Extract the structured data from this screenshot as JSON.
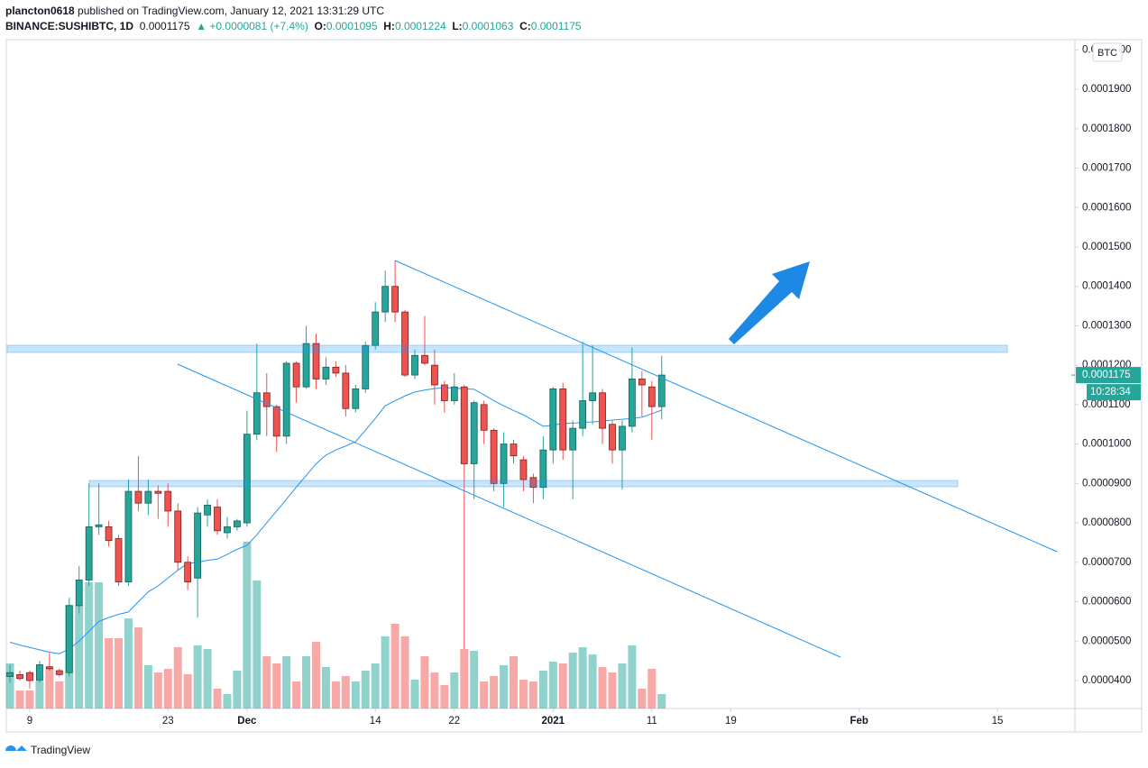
{
  "header": {
    "author": "plancton0618",
    "published": "published on TradingView.com, January 12, 2021 13:31:29 UTC",
    "symbol": "BINANCE:SUSHIBTC, 1D",
    "last": "0.0001175",
    "change": "▲ +0.0000081 (+7.4%)",
    "o_label": "O:",
    "o": "0.0001095",
    "h_label": "H:",
    "h": "0.0001224",
    "l_label": "L:",
    "l": "0.0001063",
    "c_label": "C:",
    "c": "0.0001175"
  },
  "footer": {
    "brand": "TradingView"
  },
  "chart_data": {
    "type": "candlestick",
    "currency": "BTC",
    "countdown": "10:28:34",
    "up_color": "#26a69a",
    "down_color": "#ef5350",
    "ma_color": "#2196f3",
    "grid": false,
    "xlim": [
      -2.28,
      105.85
    ],
    "xticks": [
      {
        "value": 0,
        "label": "9"
      },
      {
        "value": 14,
        "label": "23"
      },
      {
        "value": 22,
        "label": "Dec"
      },
      {
        "value": 35,
        "label": "14"
      },
      {
        "value": 43,
        "label": "22"
      },
      {
        "value": 53,
        "label": "2021"
      },
      {
        "value": 63,
        "label": "11"
      },
      {
        "value": 71,
        "label": "19"
      },
      {
        "value": 84,
        "label": "Feb"
      },
      {
        "value": 98,
        "label": "15"
      }
    ],
    "ylim": [
      3.29e-05,
      0.0002026
    ],
    "yticks": [
      {
        "value": 4e-05,
        "label": "0.0000400"
      },
      {
        "value": 5e-05,
        "label": "0.0000500"
      },
      {
        "value": 6e-05,
        "label": "0.0000600"
      },
      {
        "value": 7e-05,
        "label": "0.0000700"
      },
      {
        "value": 8e-05,
        "label": "0.0000800"
      },
      {
        "value": 9e-05,
        "label": "0.0000900"
      },
      {
        "value": 0.0001,
        "label": "0.0001000"
      },
      {
        "value": 0.00011,
        "label": "0.0001100"
      },
      {
        "value": 0.00012,
        "label": "0.0001200"
      },
      {
        "value": 0.00013,
        "label": "0.0001300"
      },
      {
        "value": 0.00014,
        "label": "0.0001400"
      },
      {
        "value": 0.00015,
        "label": "0.0001500"
      },
      {
        "value": 0.00016,
        "label": "0.0001600"
      },
      {
        "value": 0.00017,
        "label": "0.0001700"
      },
      {
        "value": 0.00018,
        "label": "0.0001800"
      },
      {
        "value": 0.00019,
        "label": "0.0001900"
      },
      {
        "value": 0.0002,
        "label": "0.0002000"
      }
    ],
    "x": [
      -2,
      -1,
      0,
      1,
      2,
      3,
      4,
      5,
      6,
      7,
      8,
      9,
      10,
      11,
      12,
      13,
      14,
      15,
      16,
      17,
      18,
      19,
      20,
      21,
      22,
      23,
      24,
      25,
      26,
      27,
      28,
      29,
      30,
      31,
      32,
      33,
      34,
      35,
      36,
      37,
      38,
      39,
      40,
      41,
      42,
      43,
      44,
      45,
      46,
      47,
      48,
      49,
      50,
      51,
      52,
      53,
      54,
      55,
      56,
      57,
      58,
      59,
      60,
      61,
      62,
      63,
      64
    ],
    "open": [
      4.1e-05,
      4.15e-05,
      4.2e-05,
      4e-05,
      4.35e-05,
      4.25e-05,
      4.2e-05,
      5.9e-05,
      6.55e-05,
      7.9e-05,
      7.9e-05,
      7.6e-05,
      6.5e-05,
      8.8e-05,
      8.5e-05,
      8.8e-05,
      8.8e-05,
      8.3e-05,
      7e-05,
      6.6e-05,
      8.2e-05,
      8.4e-05,
      7.75e-05,
      7.9e-05,
      8e-05,
      0.0001025,
      0.000113,
      0.0001095,
      0.000102,
      0.0001205,
      0.0001145,
      0.0001255,
      0.0001165,
      0.0001195,
      0.000118,
      0.000109,
      0.000114,
      0.000125,
      0.0001335,
      0.00014,
      0.0001335,
      0.0001175,
      0.0001225,
      0.00012,
      0.000115,
      0.000111,
      0.0001145,
      9.5e-05,
      0.00011,
      0.0001035,
      9e-05,
      0.0001,
      9.6e-05,
      9.15e-05,
      8.9e-05,
      9.85e-05,
      0.000114,
      9.85e-05,
      0.000104,
      0.000111,
      0.000113,
      0.000105,
      9.85e-05,
      0.0001045,
      0.0001165,
      0.0001145,
      0.0001095
    ],
    "high": [
      4.4e-05,
      4.25e-05,
      4.25e-05,
      4.5e-05,
      4.7e-05,
      4.3e-05,
      6.1e-05,
      6.9e-05,
      9e-05,
      9e-05,
      8.05e-05,
      7.7e-05,
      9.1e-05,
      9.7e-05,
      9.1e-05,
      8.95e-05,
      9e-05,
      8.5e-05,
      7.15e-05,
      8.4e-05,
      8.6e-05,
      8.6e-05,
      8.15e-05,
      8.1e-05,
      0.0001085,
      0.0001255,
      0.000118,
      0.00011,
      0.000121,
      0.000121,
      0.00013,
      0.000128,
      0.000122,
      0.000121,
      0.00012,
      0.000115,
      0.000126,
      0.000136,
      0.000144,
      0.0001465,
      0.000134,
      0.000124,
      0.0001325,
      0.000124,
      0.000116,
      0.000118,
      0.000115,
      0.000111,
      0.000111,
      0.000104,
      0.000103,
      0.000101,
      9.7e-05,
      9.25e-05,
      0.000102,
      0.0001145,
      0.0001155,
      0.000106,
      0.000126,
      0.000125,
      0.000114,
      0.000106,
      0.000106,
      0.0001245,
      0.0001185,
      0.000116,
      0.0001224
    ],
    "low": [
      3.95e-05,
      4e-05,
      3.8e-05,
      3.95e-05,
      4.25e-05,
      4.1e-05,
      4.1e-05,
      5.7e-05,
      6.4e-05,
      7.7e-05,
      7.4e-05,
      6.4e-05,
      6.4e-05,
      8.3e-05,
      8.2e-05,
      8.1e-05,
      7.9e-05,
      6.8e-05,
      6.3e-05,
      5.6e-05,
      7.9e-05,
      7.7e-05,
      7.6e-05,
      7.8e-05,
      7.9e-05,
      0.000101,
      0.000102,
      9.8e-05,
      0.0001,
      0.0001105,
      0.000114,
      0.000114,
      0.000115,
      0.000117,
      0.000107,
      0.000108,
      0.000113,
      0.000124,
      0.000131,
      0.000131,
      0.000117,
      0.0001165,
      0.00012,
      0.00011,
      0.000108,
      0.00011,
      4.8e-05,
      8.6e-05,
      0.0001,
      8.8e-05,
      8.4e-05,
      9.5e-05,
      8.8e-05,
      8.5e-05,
      8.6e-05,
      9.5e-05,
      9.6e-05,
      8.6e-05,
      0.000102,
      0.000105,
      0.0001,
      9.5e-05,
      8.85e-05,
      0.000103,
      0.000107,
      0.000101,
      0.0001063
    ],
    "close": [
      4.2e-05,
      4.05e-05,
      4e-05,
      4.4e-05,
      4.3e-05,
      4.15e-05,
      5.9e-05,
      6.55e-05,
      7.9e-05,
      7.95e-05,
      7.55e-05,
      6.5e-05,
      8.8e-05,
      8.5e-05,
      8.8e-05,
      8.75e-05,
      8.3e-05,
      7e-05,
      6.5e-05,
      8.25e-05,
      8.45e-05,
      7.8e-05,
      7.9e-05,
      8.05e-05,
      0.0001025,
      0.000113,
      0.0001095,
      0.000102,
      0.0001205,
      0.0001145,
      0.0001255,
      0.0001165,
      0.0001195,
      0.000118,
      0.000109,
      0.000114,
      0.000125,
      0.0001335,
      0.00014,
      0.0001335,
      0.0001175,
      0.0001225,
      0.0001205,
      0.000115,
      0.000111,
      0.0001145,
      9.5e-05,
      0.0001105,
      0.0001035,
      9e-05,
      0.0001,
      9.7e-05,
      9.1e-05,
      8.9e-05,
      9.85e-05,
      0.000114,
      9.85e-05,
      0.000104,
      0.000111,
      0.000113,
      0.000104,
      9.85e-05,
      0.0001045,
      0.0001165,
      0.000115,
      0.0001095,
      0.0001175
    ],
    "ma": [
      4.97e-05,
      4.9e-05,
      4.84e-05,
      4.78e-05,
      4.72e-05,
      4.68e-05,
      4.8e-05,
      5e-05,
      5.25e-05,
      5.5e-05,
      5.6e-05,
      5.68e-05,
      5.74e-05,
      6e-05,
      6.25e-05,
      6.4e-05,
      6.6e-05,
      6.8e-05,
      6.97e-05,
      7e-05,
      7.05e-05,
      7.08e-05,
      7.2e-05,
      7.33e-05,
      7.43e-05,
      7.7e-05,
      8e-05,
      8.3e-05,
      8.6e-05,
      8.91e-05,
      9.2e-05,
      9.5e-05,
      9.72e-05,
      9.85e-05,
      9.95e-05,
      0.0001006,
      0.0001035,
      0.0001065,
      0.0001097,
      0.000111,
      0.0001122,
      0.0001132,
      0.0001137,
      0.0001141,
      0.0001143,
      0.0001142,
      0.000114,
      0.0001139,
      0.0001125,
      0.000111,
      0.0001097,
      0.0001085,
      0.0001074,
      0.000106,
      0.0001045,
      0.0001048,
      0.0001052,
      0.0001053,
      0.0001055,
      0.0001056,
      0.0001058,
      0.0001061,
      0.0001063,
      0.0001065,
      0.0001068,
      0.0001077,
      0.0001086
    ],
    "volume": [
      50,
      20,
      20,
      30,
      45,
      30,
      115,
      115,
      140,
      140,
      78,
      78,
      100,
      90,
      48,
      40,
      44,
      68,
      38,
      70,
      66,
      22,
      16,
      42,
      185,
      142,
      58,
      50,
      58,
      30,
      58,
      74,
      46,
      30,
      36,
      30,
      42,
      50,
      80,
      94,
      80,
      32,
      58,
      40,
      26,
      40,
      66,
      64,
      30,
      36,
      48,
      58,
      32,
      30,
      42,
      52,
      50,
      62,
      68,
      60,
      46,
      40,
      50,
      70,
      22,
      44,
      16
    ]
  }
}
